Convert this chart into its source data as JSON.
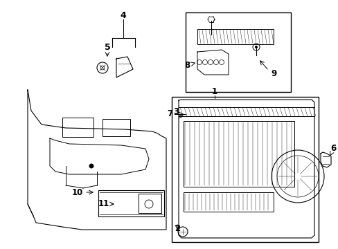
{
  "background": "#ffffff",
  "line_color": "#000000",
  "fig_width": 4.89,
  "fig_height": 3.6,
  "dpi": 100
}
